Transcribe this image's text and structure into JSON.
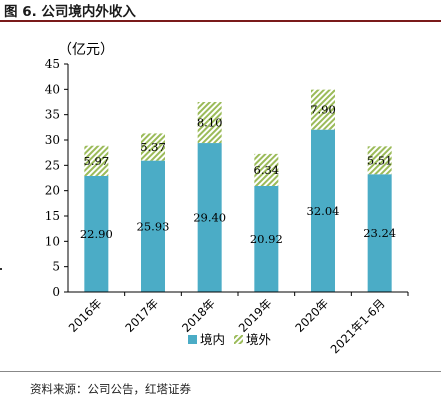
{
  "figure": {
    "title": "图 6. 公司境内外收入",
    "source": "资料来源：公司公告，红塔证券"
  },
  "chart_data": {
    "type": "bar",
    "stacked": true,
    "unit_label": "（亿元）",
    "categories": [
      "2016年",
      "2017年",
      "2018年",
      "2019年",
      "2020年",
      "2021年1-6月"
    ],
    "series": [
      {
        "name": "境内",
        "values": [
          22.9,
          25.93,
          29.4,
          20.92,
          32.04,
          23.24
        ],
        "color": "#4bacc6"
      },
      {
        "name": "境外",
        "values": [
          5.97,
          5.37,
          8.1,
          6.34,
          7.9,
          5.51
        ],
        "color": "#9bbb59",
        "pattern": "diagonal-hatch"
      }
    ],
    "value_labels": [
      [
        "22.90",
        "25.93",
        "29.40",
        "20.92",
        "32.04",
        "23.24"
      ],
      [
        "5.97",
        "5.37",
        "8.10",
        "6.34",
        "7.90",
        "5.51"
      ]
    ],
    "ylim": [
      0,
      45
    ],
    "yticks": [
      0,
      5,
      10,
      15,
      20,
      25,
      30,
      35,
      40,
      45
    ],
    "grid": false,
    "legend_position": "bottom"
  }
}
